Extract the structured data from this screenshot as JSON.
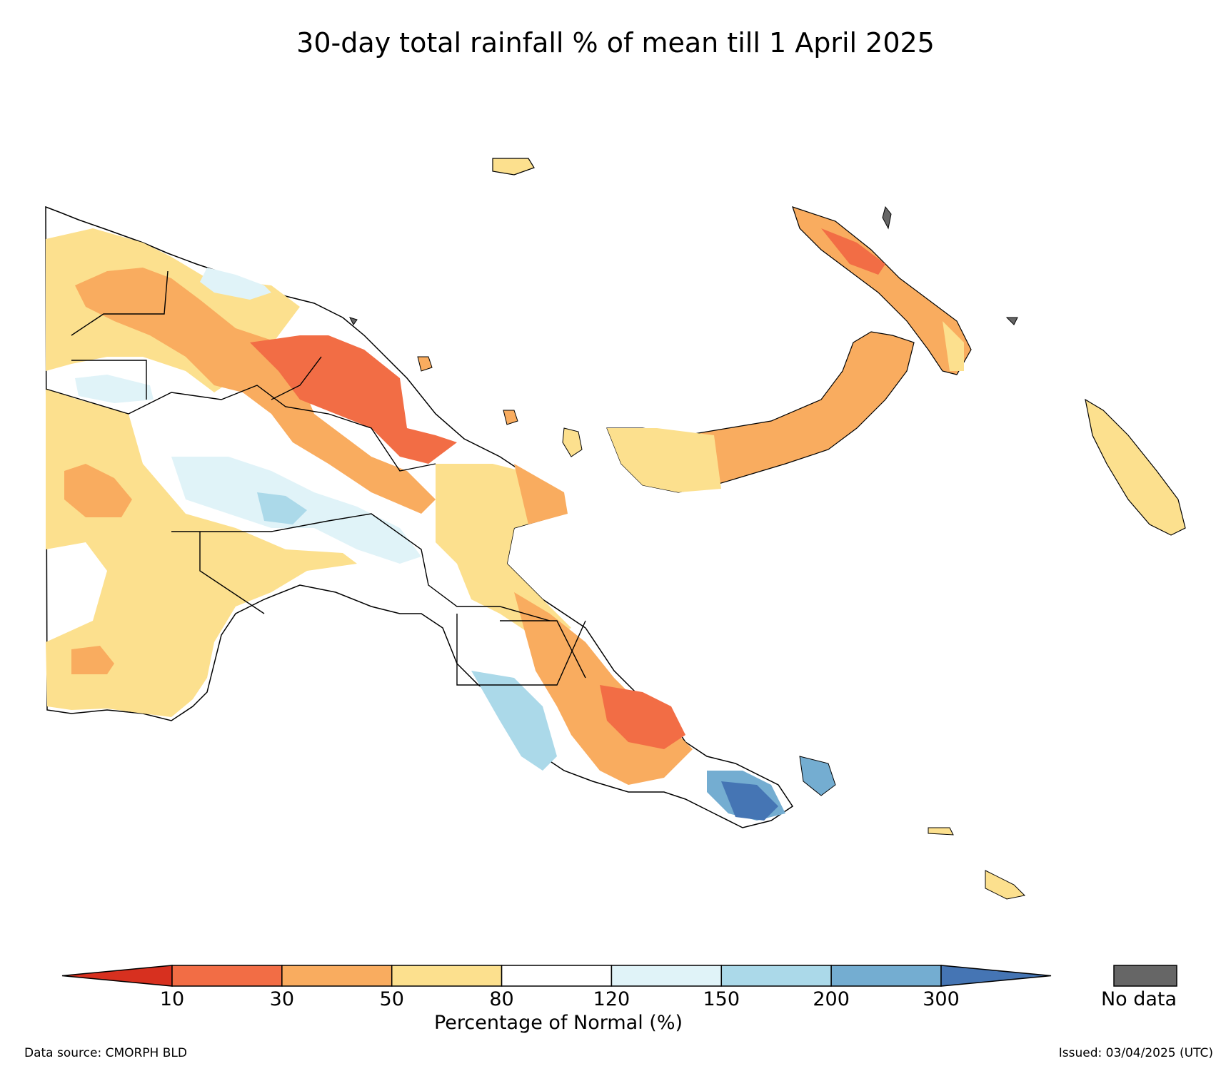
{
  "title": "30-day total rainfall % of mean till 1 April 2025",
  "legend": {
    "ticks": [
      "10",
      "30",
      "50",
      "80",
      "120",
      "150",
      "200",
      "300"
    ],
    "label": "Percentage of Normal (%)",
    "colors": [
      "#d7301f",
      "#f26d45",
      "#f9ac5f",
      "#fce08e",
      "#ffffff",
      "#e0f3f8",
      "#abd9e9",
      "#74add1",
      "#4575b4"
    ],
    "nodata_label": "No data",
    "nodata_color": "#666666"
  },
  "footer": {
    "source": "Data source: CMORPH BLD",
    "issued": "Issued: 03/04/2025 (UTC)"
  }
}
